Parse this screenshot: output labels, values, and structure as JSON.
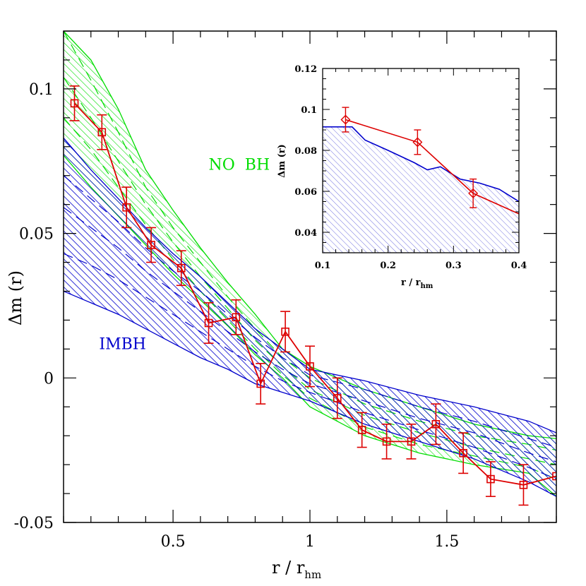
{
  "chart_data": [
    {
      "type": "line",
      "xlabel": "r / r",
      "xlabel_sub": "hm",
      "ylabel": "Δm (r)",
      "xlim": [
        0.1,
        1.9
      ],
      "ylim": [
        -0.05,
        0.12
      ],
      "xticks": [
        0.5,
        1,
        1.5
      ],
      "xtick_labels": [
        "0.5",
        "1",
        "1.5"
      ],
      "yticks": [
        -0.05,
        0,
        0.05,
        0.1
      ],
      "ytick_labels": [
        "-0.05",
        "0",
        "0.05",
        "0.1"
      ],
      "annotations": [
        {
          "text": "NO  BH",
          "x": 0.63,
          "y": 0.072,
          "color": "#00dd00"
        },
        {
          "text": "IMBH",
          "x": 0.23,
          "y": 0.01,
          "color": "#0000cc"
        }
      ],
      "bands": [
        {
          "name": "NO BH",
          "color": "#00dd00",
          "x": [
            0.1,
            0.2,
            0.3,
            0.4,
            0.5,
            0.6,
            0.7,
            0.8,
            0.9,
            1.0,
            1.2,
            1.4,
            1.6,
            1.8,
            1.9
          ],
          "upper": [
            0.12,
            0.11,
            0.093,
            0.072,
            0.058,
            0.045,
            0.033,
            0.022,
            0.01,
            0.004,
            -0.004,
            -0.01,
            -0.016,
            -0.02,
            -0.021
          ],
          "lower": [
            0.077,
            0.066,
            0.056,
            0.046,
            0.036,
            0.027,
            0.018,
            0.008,
            0.0,
            -0.01,
            -0.02,
            -0.026,
            -0.03,
            -0.033,
            -0.041
          ],
          "inner": [
            [
              0.12,
              0.103,
              0.085,
              0.066,
              0.052,
              0.04,
              0.028,
              0.017,
              0.007,
              0.0,
              -0.009,
              -0.015,
              -0.02,
              -0.023,
              -0.025
            ],
            [
              0.104,
              0.09,
              0.075,
              0.06,
              0.047,
              0.035,
              0.024,
              0.013,
              0.004,
              -0.004,
              -0.013,
              -0.019,
              -0.024,
              -0.028,
              -0.03
            ],
            [
              0.09,
              0.079,
              0.066,
              0.053,
              0.041,
              0.03,
              0.02,
              0.01,
              0.001,
              -0.007,
              -0.017,
              -0.023,
              -0.027,
              -0.031,
              -0.035
            ]
          ]
        },
        {
          "name": "IMBH",
          "color": "#0000cc",
          "x": [
            0.1,
            0.2,
            0.3,
            0.4,
            0.5,
            0.6,
            0.7,
            0.8,
            0.9,
            1.0,
            1.2,
            1.4,
            1.6,
            1.8,
            1.9
          ],
          "upper": [
            0.083,
            0.072,
            0.062,
            0.052,
            0.043,
            0.035,
            0.026,
            0.017,
            0.01,
            0.003,
            -0.001,
            -0.006,
            -0.01,
            -0.015,
            -0.019
          ],
          "lower": [
            0.03,
            0.026,
            0.022,
            0.017,
            0.012,
            0.007,
            0.003,
            -0.002,
            -0.005,
            -0.008,
            -0.016,
            -0.022,
            -0.028,
            -0.036,
            -0.041
          ],
          "inner": [
            [
              0.07,
              0.062,
              0.054,
              0.045,
              0.037,
              0.03,
              0.022,
              0.014,
              0.007,
              0.001,
              -0.004,
              -0.01,
              -0.015,
              -0.021,
              -0.024
            ],
            [
              0.059,
              0.052,
              0.045,
              0.037,
              0.03,
              0.023,
              0.016,
              0.009,
              0.003,
              -0.002,
              -0.008,
              -0.014,
              -0.019,
              -0.026,
              -0.029
            ],
            [
              0.043,
              0.039,
              0.034,
              0.028,
              0.022,
              0.016,
              0.01,
              0.004,
              -0.001,
              -0.005,
              -0.012,
              -0.018,
              -0.024,
              -0.031,
              -0.035
            ]
          ]
        }
      ],
      "series": [
        {
          "color": "#dd0000",
          "marker": "square",
          "x": [
            0.14,
            0.24,
            0.33,
            0.42,
            0.53,
            0.63,
            0.73,
            0.82,
            0.91,
            1.0,
            1.1,
            1.19,
            1.28,
            1.37,
            1.46,
            1.56,
            1.66,
            1.78,
            1.9
          ],
          "y": [
            0.095,
            0.085,
            0.059,
            0.046,
            0.038,
            0.019,
            0.021,
            -0.002,
            0.016,
            0.004,
            -0.007,
            -0.018,
            -0.022,
            -0.022,
            -0.016,
            -0.026,
            -0.035,
            -0.037,
            -0.034
          ],
          "yerr": [
            0.006,
            0.006,
            0.007,
            0.006,
            0.006,
            0.007,
            0.006,
            0.007,
            0.007,
            0.007,
            0.007,
            0.006,
            0.006,
            0.006,
            0.007,
            0.007,
            0.006,
            0.007,
            0.0
          ]
        }
      ]
    },
    {
      "type": "line",
      "xlabel": "r / r",
      "xlabel_sub": "hm",
      "ylabel": "Δm (r)",
      "xlim": [
        0.1,
        0.4
      ],
      "ylim": [
        0.03,
        0.12
      ],
      "xticks": [
        0.1,
        0.2,
        0.3,
        0.4
      ],
      "xtick_labels": [
        "0.1",
        "0.2",
        "0.3",
        "0.4"
      ],
      "yticks": [
        0.04,
        0.06,
        0.08,
        0.1,
        0.12
      ],
      "ytick_labels": [
        "0.04",
        "0.06",
        "0.08",
        "0.1",
        "0.12"
      ],
      "area": {
        "color": "#0000cc",
        "x": [
          0.1,
          0.145,
          0.165,
          0.2,
          0.24,
          0.26,
          0.28,
          0.31,
          0.34,
          0.37,
          0.4
        ],
        "upper": [
          0.0915,
          0.0915,
          0.085,
          0.08,
          0.074,
          0.0705,
          0.072,
          0.066,
          0.064,
          0.061,
          0.055
        ]
      },
      "series": [
        {
          "color": "#dd0000",
          "marker": "diamond",
          "x": [
            0.135,
            0.245,
            0.33,
            0.4
          ],
          "y": [
            0.095,
            0.084,
            0.059,
            0.049
          ],
          "yerr": [
            0.006,
            0.006,
            0.007,
            0.0
          ]
        }
      ]
    }
  ]
}
